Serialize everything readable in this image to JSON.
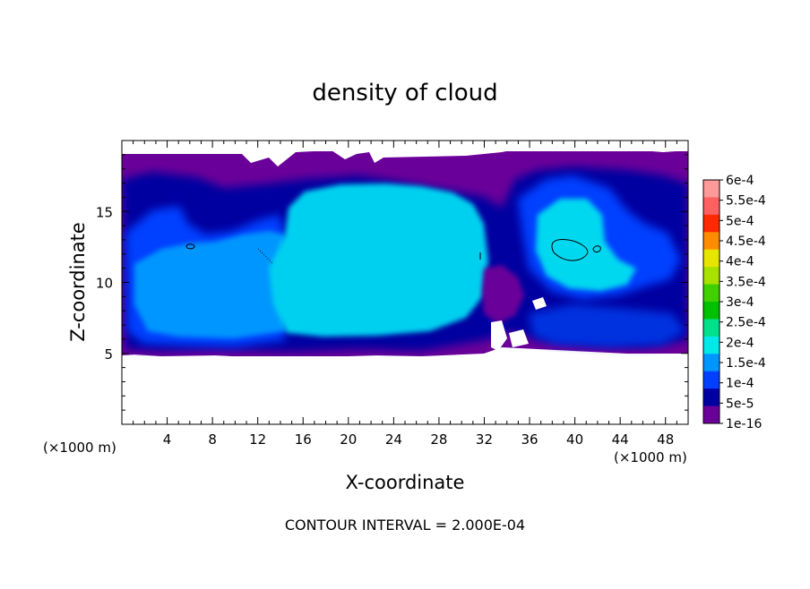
{
  "chart_data": {
    "type": "heatmap",
    "title": "density of cloud",
    "xlabel": "X-coordinate",
    "ylabel": "Z-coordinate",
    "x_unit_label": "(×1000 m)",
    "z_unit_label": "(×1000 m)",
    "xlim": [
      0,
      50
    ],
    "ylim": [
      0,
      20
    ],
    "xticks": [
      4,
      8,
      12,
      16,
      20,
      24,
      28,
      32,
      36,
      40,
      44,
      48
    ],
    "yticks": [
      5,
      10,
      15
    ],
    "footer": "CONTOUR INTERVAL = 2.000E-04",
    "colorbar": {
      "labels": [
        "6e-4",
        "5.5e-4",
        "5e-4",
        "4.5e-4",
        "4e-4",
        "3.5e-4",
        "3e-4",
        "2.5e-4",
        "2e-4",
        "1.5e-4",
        "1e-4",
        "5e-5",
        "1e-16"
      ],
      "colors": [
        "#ff9a9a",
        "#ff6060",
        "#ff2a00",
        "#ff8c00",
        "#e6e600",
        "#a8e000",
        "#40d000",
        "#00c000",
        "#00e08a",
        "#00e8e8",
        "#0096ff",
        "#0040ff",
        "#0000a0",
        "#6a0099"
      ]
    },
    "cloud_regions": [
      {
        "x_min": 0,
        "x_max": 15,
        "z_min": 5,
        "z_max": 19,
        "level": "1e-16 to 1.5e-4"
      },
      {
        "x_min": 15,
        "x_max": 33,
        "z_min": 5,
        "z_max": 17,
        "level": "1.5e-4 to 2e-4"
      },
      {
        "x_min": 33,
        "x_max": 50,
        "z_min": 5,
        "z_max": 19,
        "level": "1e-16 to 2e-4"
      }
    ],
    "contour_2e-4": [
      {
        "x": 40,
        "z": 12.1
      },
      {
        "x": 42,
        "z": 12.3
      },
      {
        "x": 6,
        "z": 12.4
      },
      {
        "x": 31.6,
        "z": 11.9
      }
    ]
  }
}
